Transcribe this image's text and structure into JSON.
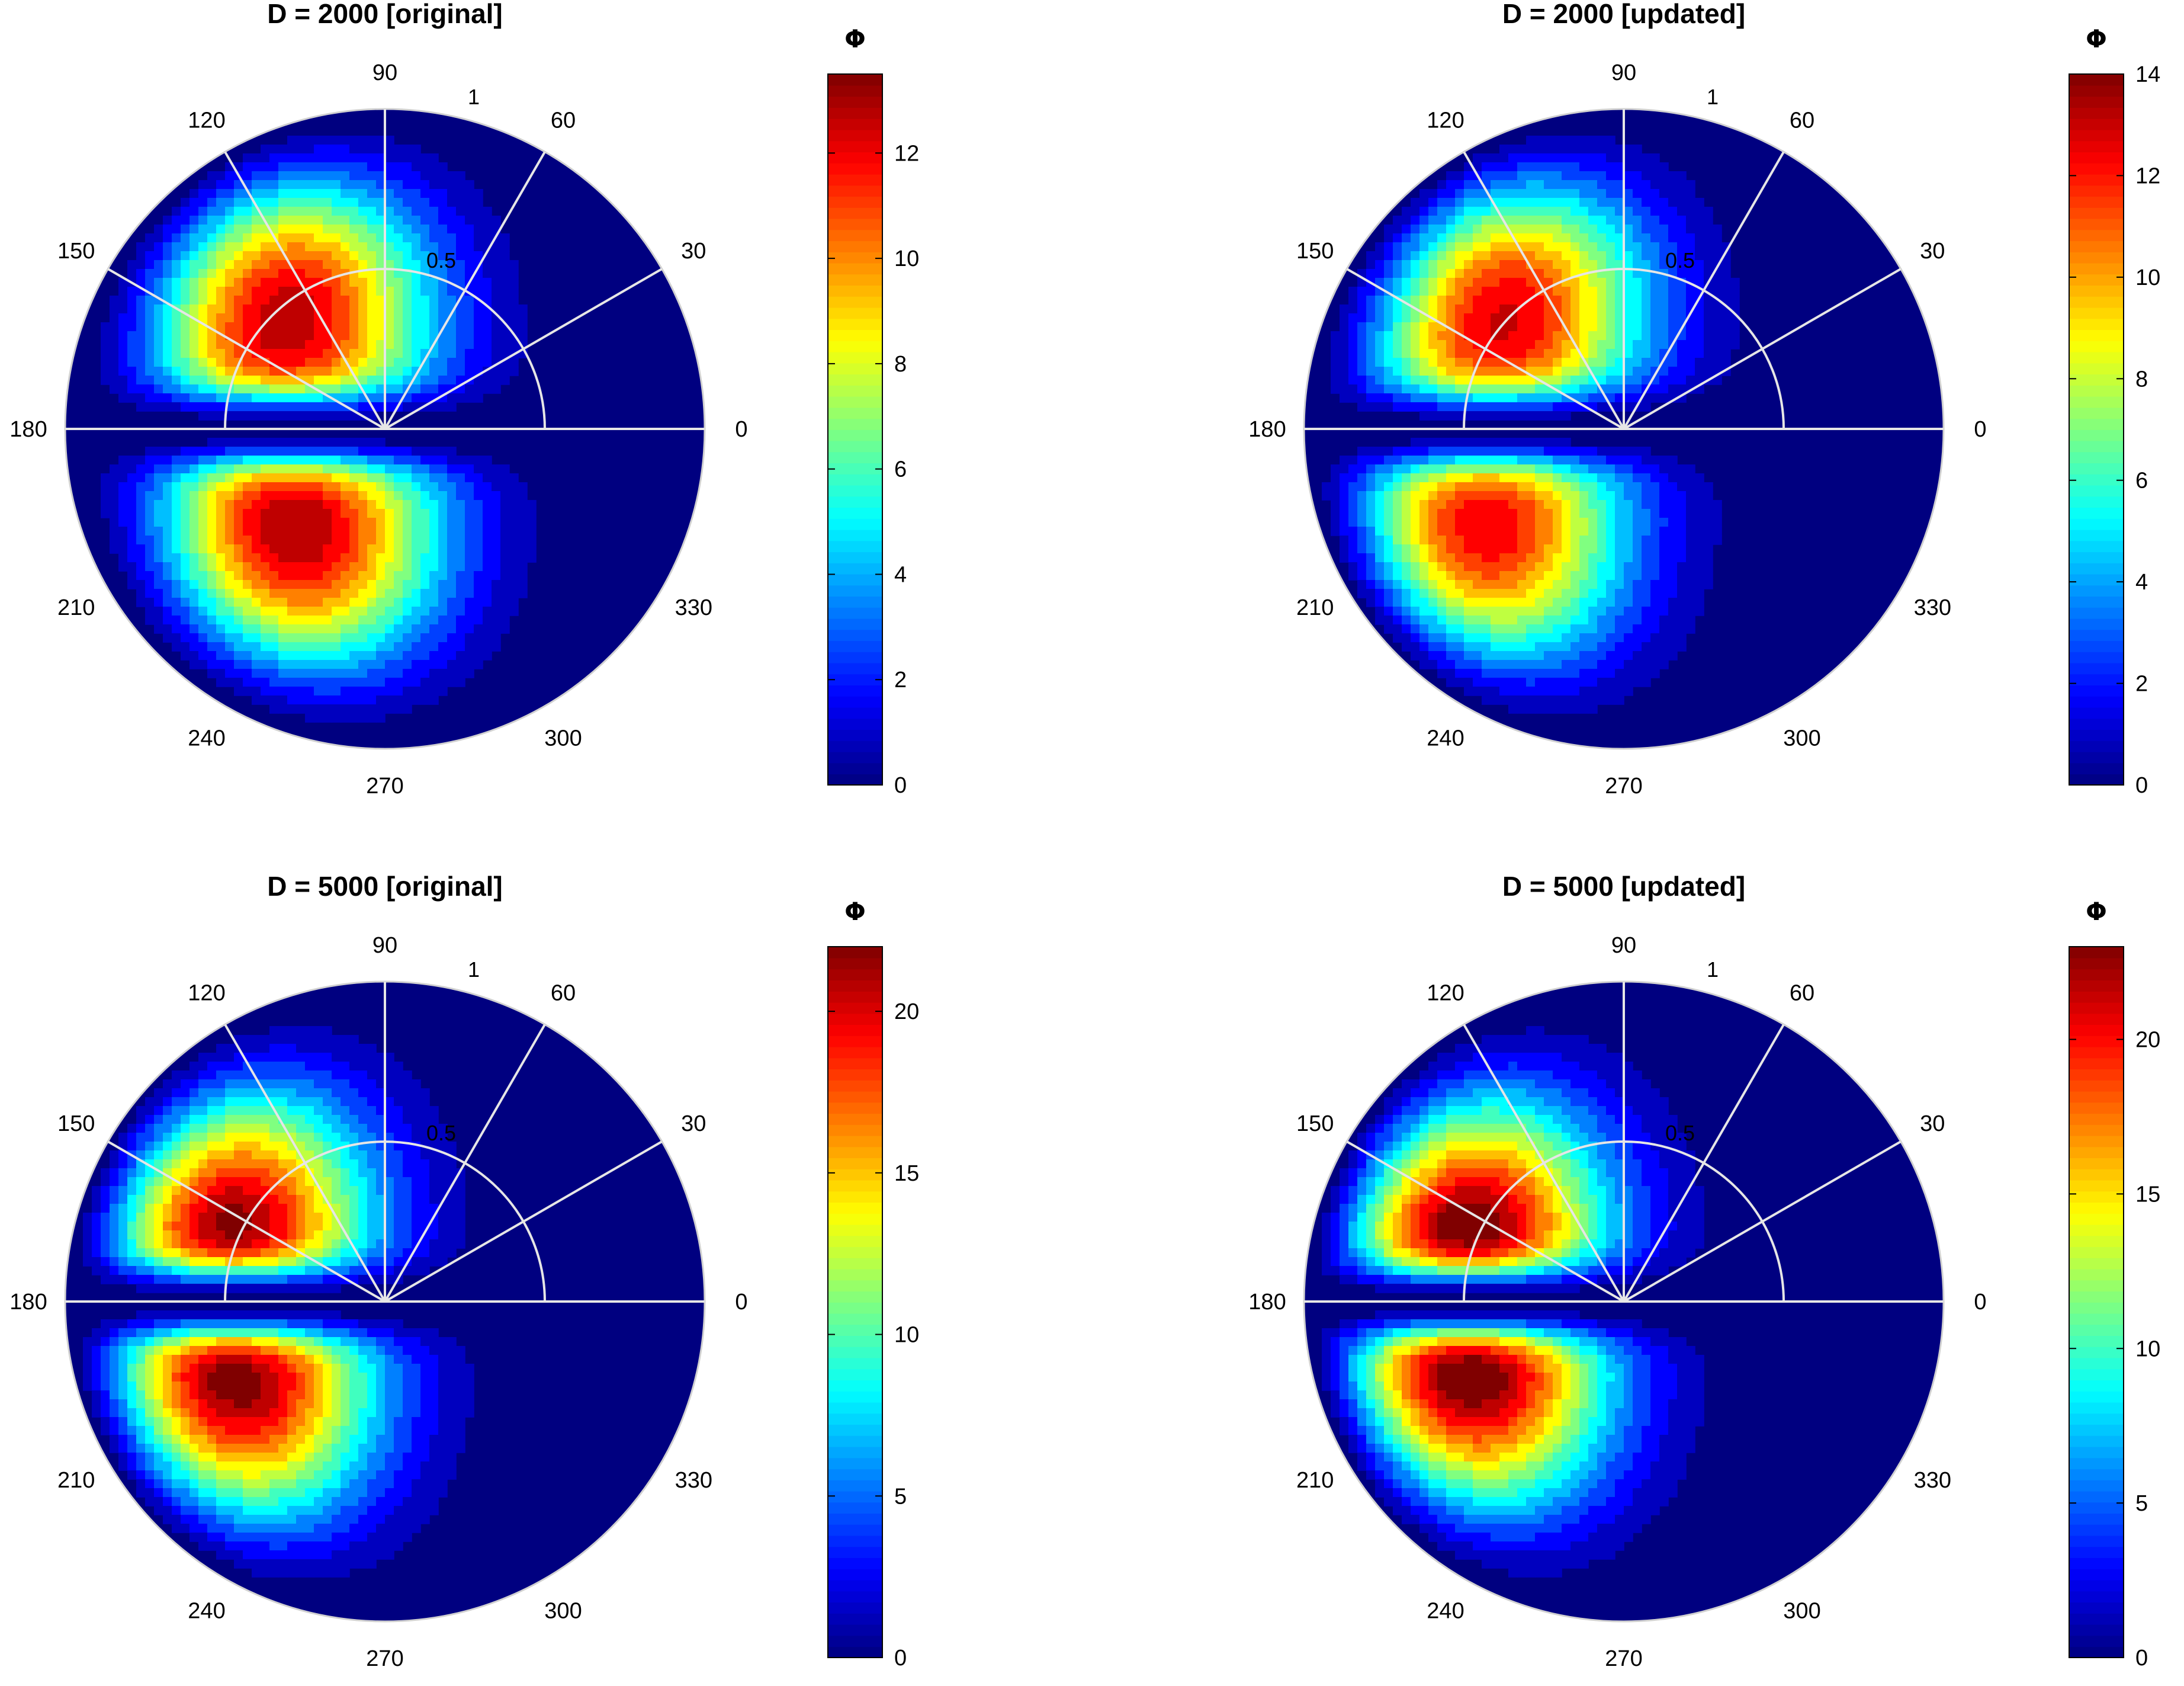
{
  "chart_data": [
    {
      "type": "polar-contour",
      "title": "D = 2000 [original]",
      "angle_ticks": [
        "0",
        "30",
        "60",
        "90",
        "120",
        "150",
        "180",
        "210",
        "240",
        "270",
        "300",
        "330"
      ],
      "radial_ticks": [
        "0.5",
        "1"
      ],
      "colorbar": {
        "label": "Φ",
        "min": 0,
        "max": 13.5,
        "ticks": [
          "0",
          "2",
          "4",
          "6",
          "8",
          "10",
          "12"
        ]
      },
      "peaks": [
        {
          "theta_deg": 128,
          "r": 0.55,
          "value": 13.5
        },
        {
          "theta_deg": 232,
          "r": 0.48,
          "value": 13.5
        }
      ],
      "colormap": "jet"
    },
    {
      "type": "polar-contour",
      "title": "D = 2000 [updated]",
      "angle_ticks": [
        "0",
        "30",
        "60",
        "90",
        "120",
        "150",
        "180",
        "210",
        "240",
        "270",
        "300",
        "330"
      ],
      "radial_ticks": [
        "0.5",
        "1"
      ],
      "colorbar": {
        "label": "Φ",
        "min": 0,
        "max": 14,
        "ticks": [
          "0",
          "2",
          "4",
          "6",
          "8",
          "10",
          "12",
          "14"
        ]
      },
      "peaks": [
        {
          "theta_deg": 133,
          "r": 0.6,
          "value": 14
        },
        {
          "theta_deg": 218,
          "r": 0.62,
          "value": 14
        }
      ],
      "colormap": "jet"
    },
    {
      "type": "polar-contour",
      "title": "D = 5000 [original]",
      "angle_ticks": [
        "0",
        "30",
        "60",
        "90",
        "120",
        "150",
        "180",
        "210",
        "240",
        "270",
        "300",
        "330"
      ],
      "radial_ticks": [
        "0.5",
        "1"
      ],
      "colorbar": {
        "label": "Φ",
        "min": 0,
        "max": 22,
        "ticks": [
          "0",
          "5",
          "10",
          "15",
          "20"
        ]
      },
      "peaks": [
        {
          "theta_deg": 150,
          "r": 0.62,
          "value": 22
        },
        {
          "theta_deg": 213,
          "r": 0.62,
          "value": 22
        }
      ],
      "colormap": "jet"
    },
    {
      "type": "polar-contour",
      "title": "D = 5000 [updated]",
      "angle_ticks": [
        "0",
        "30",
        "60",
        "90",
        "120",
        "150",
        "180",
        "210",
        "240",
        "270",
        "300",
        "330"
      ],
      "radial_ticks": [
        "0.5",
        "1"
      ],
      "colorbar": {
        "label": "Φ",
        "min": 0,
        "max": 23,
        "ticks": [
          "0",
          "5",
          "10",
          "15",
          "20"
        ]
      },
      "peaks": [
        {
          "theta_deg": 152,
          "r": 0.62,
          "value": 23
        },
        {
          "theta_deg": 209,
          "r": 0.62,
          "value": 23
        }
      ],
      "colormap": "jet"
    }
  ]
}
